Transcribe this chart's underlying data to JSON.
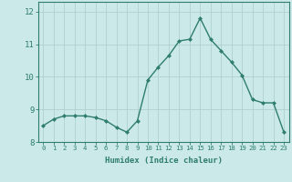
{
  "x": [
    0,
    1,
    2,
    3,
    4,
    5,
    6,
    7,
    8,
    9,
    10,
    11,
    12,
    13,
    14,
    15,
    16,
    17,
    18,
    19,
    20,
    21,
    22,
    23
  ],
  "y": [
    8.5,
    8.7,
    8.8,
    8.8,
    8.8,
    8.75,
    8.65,
    8.45,
    8.3,
    8.65,
    9.9,
    10.3,
    10.65,
    11.1,
    11.15,
    11.8,
    11.15,
    10.8,
    10.45,
    10.05,
    9.3,
    9.2,
    9.2,
    8.3
  ],
  "line_color": "#2e7d6e",
  "marker": "D",
  "marker_size": 2.0,
  "bg_color": "#cce9ea",
  "grid_color": "#b0cfcf",
  "xlabel": "Humidex (Indice chaleur)",
  "ylim": [
    8.0,
    12.3
  ],
  "yticks": [
    8,
    9,
    10,
    11,
    12
  ],
  "xticks": [
    0,
    1,
    2,
    3,
    4,
    5,
    6,
    7,
    8,
    9,
    10,
    11,
    12,
    13,
    14,
    15,
    16,
    17,
    18,
    19,
    20,
    21,
    22,
    23
  ],
  "tick_color": "#2e7d6e",
  "axis_color": "#2e7d6e",
  "label_color": "#2e7d6e",
  "xtick_fontsize": 5.2,
  "ytick_fontsize": 6.5,
  "xlabel_fontsize": 6.5
}
